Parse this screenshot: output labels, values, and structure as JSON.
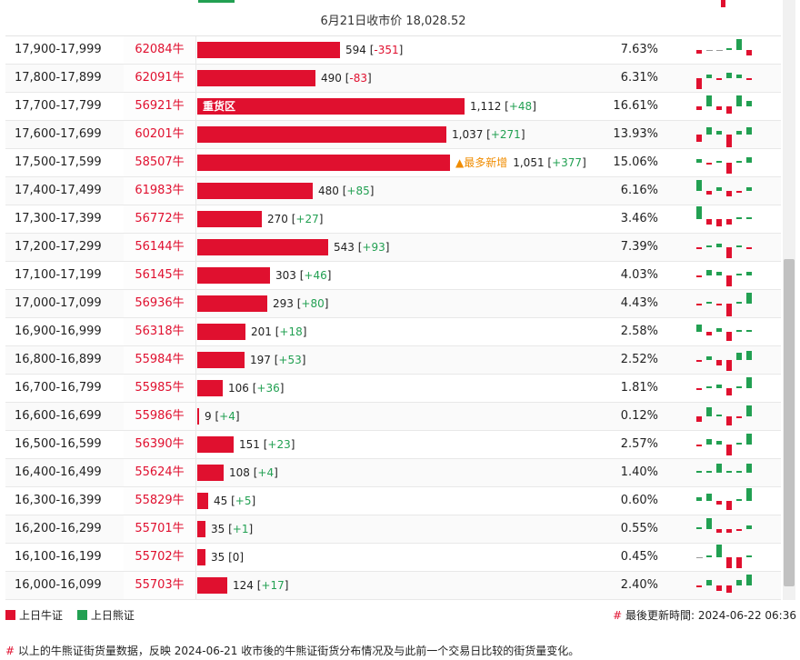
{
  "caption": "6月21日收市价 18,028.52",
  "legend": {
    "bull": "上日牛证",
    "bear": "上日熊证",
    "bull_color": "#e0102f",
    "bear_color": "#22a052"
  },
  "updated": {
    "hash": "#",
    "label": "最後更新時間:",
    "time": "2024-06-22 06:36"
  },
  "footnote": {
    "hash": "#",
    "text": "以上的牛熊证街货量数据，反映 2024-06-21 收市後的牛熊证街货分布情况及与此前一个交易日比较的街货量变化。"
  },
  "rows": [
    {
      "range": "17,900-17,999",
      "code": "62084牛",
      "count": 594,
      "count_text": "594",
      "change": "-351",
      "pct": "7.63%",
      "spark": [
        -2,
        0,
        0,
        1,
        6,
        -3
      ]
    },
    {
      "range": "17,800-17,899",
      "code": "62091牛",
      "count": 490,
      "count_text": "490",
      "change": "-83",
      "pct": "6.31%",
      "spark": [
        -6,
        2,
        -1,
        3,
        2,
        -1
      ]
    },
    {
      "range": "17,700-17,799",
      "code": "56921牛",
      "count": 1112,
      "count_text": "1,112",
      "change": "+48",
      "pct": "16.61%",
      "label": "重货区",
      "spark": [
        -2,
        6,
        -2,
        -4,
        6,
        3
      ]
    },
    {
      "range": "17,600-17,699",
      "code": "60201牛",
      "count": 1037,
      "count_text": "1,037",
      "change": "+271",
      "pct": "13.93%",
      "spark": [
        -4,
        4,
        2,
        -7,
        2,
        4
      ]
    },
    {
      "range": "17,500-17,599",
      "code": "58507牛",
      "count": 1051,
      "count_text": "1,051",
      "change": "+377",
      "pct": "15.06%",
      "tag": "▲最多新增",
      "spark": [
        2,
        -1,
        1,
        -6,
        1,
        3
      ]
    },
    {
      "range": "17,400-17,499",
      "code": "61983牛",
      "count": 480,
      "count_text": "480",
      "change": "+85",
      "pct": "6.16%",
      "spark": [
        6,
        -2,
        2,
        -3,
        -1,
        2
      ]
    },
    {
      "range": "17,300-17,399",
      "code": "56772牛",
      "count": 270,
      "count_text": "270",
      "change": "+27",
      "pct": "3.46%",
      "spark": [
        7,
        -3,
        -4,
        -3,
        1,
        1
      ]
    },
    {
      "range": "17,200-17,299",
      "code": "56144牛",
      "count": 543,
      "count_text": "543",
      "change": "+93",
      "pct": "7.39%",
      "spark": [
        -1,
        1,
        2,
        -6,
        1,
        -1
      ]
    },
    {
      "range": "17,100-17,199",
      "code": "56145牛",
      "count": 303,
      "count_text": "303",
      "change": "+46",
      "pct": "4.03%",
      "spark": [
        -1,
        3,
        2,
        -6,
        1,
        2
      ]
    },
    {
      "range": "17,000-17,099",
      "code": "56936牛",
      "count": 293,
      "count_text": "293",
      "change": "+80",
      "pct": "4.43%",
      "spark": [
        -1,
        1,
        -1,
        -7,
        1,
        6
      ]
    },
    {
      "range": "16,900-16,999",
      "code": "56318牛",
      "count": 201,
      "count_text": "201",
      "change": "+18",
      "pct": "2.58%",
      "spark": [
        4,
        -2,
        2,
        -5,
        1,
        1
      ]
    },
    {
      "range": "16,800-16,899",
      "code": "55984牛",
      "count": 197,
      "count_text": "197",
      "change": "+53",
      "pct": "2.52%",
      "spark": [
        -1,
        2,
        -3,
        -6,
        4,
        5
      ]
    },
    {
      "range": "16,700-16,799",
      "code": "55985牛",
      "count": 106,
      "count_text": "106",
      "change": "+36",
      "pct": "1.81%",
      "spark": [
        -1,
        1,
        2,
        -4,
        1,
        6
      ]
    },
    {
      "range": "16,600-16,699",
      "code": "55986牛",
      "count": 9,
      "count_text": "9",
      "change": "+4",
      "pct": "0.12%",
      "spark": [
        -3,
        5,
        1,
        -5,
        -1,
        6
      ]
    },
    {
      "range": "16,500-16,599",
      "code": "56390牛",
      "count": 151,
      "count_text": "151",
      "change": "+23",
      "pct": "2.57%",
      "spark": [
        -1,
        3,
        2,
        -6,
        1,
        6
      ]
    },
    {
      "range": "16,400-16,499",
      "code": "55624牛",
      "count": 108,
      "count_text": "108",
      "change": "+4",
      "pct": "1.40%",
      "spark": [
        1,
        1,
        5,
        1,
        1,
        5
      ]
    },
    {
      "range": "16,300-16,399",
      "code": "55829牛",
      "count": 45,
      "count_text": "45",
      "change": "+5",
      "pct": "0.60%",
      "spark": [
        2,
        4,
        -2,
        -5,
        1,
        7
      ]
    },
    {
      "range": "16,200-16,299",
      "code": "55701牛",
      "count": 35,
      "count_text": "35",
      "change": "+1",
      "pct": "0.55%",
      "spark": [
        1,
        6,
        -2,
        -2,
        -1,
        2
      ]
    },
    {
      "range": "16,100-16,199",
      "code": "55702牛",
      "count": 35,
      "count_text": "35",
      "change": "0",
      "pct": "0.45%",
      "spark": [
        0,
        1,
        7,
        -6,
        -6,
        1
      ]
    },
    {
      "range": "16,000-16,099",
      "code": "55703牛",
      "count": 124,
      "count_text": "124",
      "change": "+17",
      "pct": "2.40%",
      "spark": [
        -1,
        3,
        -3,
        -4,
        3,
        6
      ]
    }
  ]
}
